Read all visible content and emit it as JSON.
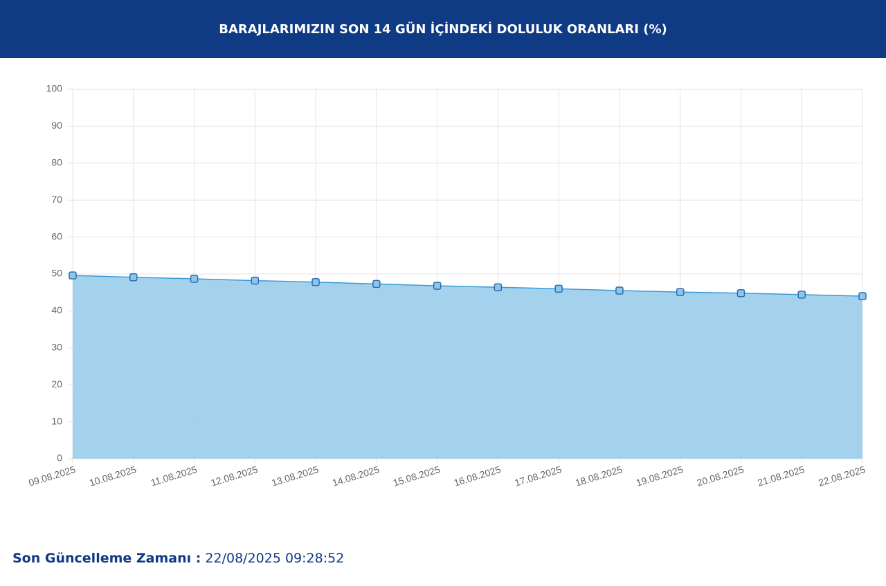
{
  "chart_data": {
    "type": "area",
    "title": "BARAJLARIMIZIN SON 14 GÜN İÇİNDEKİ DOLULUK ORANLARI (%)",
    "categories": [
      "09.08.2025",
      "10.08.2025",
      "11.08.2025",
      "12.08.2025",
      "13.08.2025",
      "14.08.2025",
      "15.08.2025",
      "16.08.2025",
      "17.08.2025",
      "18.08.2025",
      "19.08.2025",
      "20.08.2025",
      "21.08.2025",
      "22.08.2025"
    ],
    "values": [
      49.6,
      49.1,
      48.7,
      48.2,
      47.8,
      47.3,
      46.8,
      46.4,
      46.0,
      45.5,
      45.1,
      44.8,
      44.4,
      44.0
    ],
    "color": "#3a9ad9",
    "fill_color": "#9fd0ec",
    "ylim": [
      0,
      100
    ],
    "yticks": [
      0,
      10,
      20,
      30,
      40,
      50,
      60,
      70,
      80,
      90,
      100
    ],
    "grid": true
  },
  "footer": {
    "label": "Son Güncelleme Zamanı :",
    "value": "22/08/2025 09:28:52"
  }
}
